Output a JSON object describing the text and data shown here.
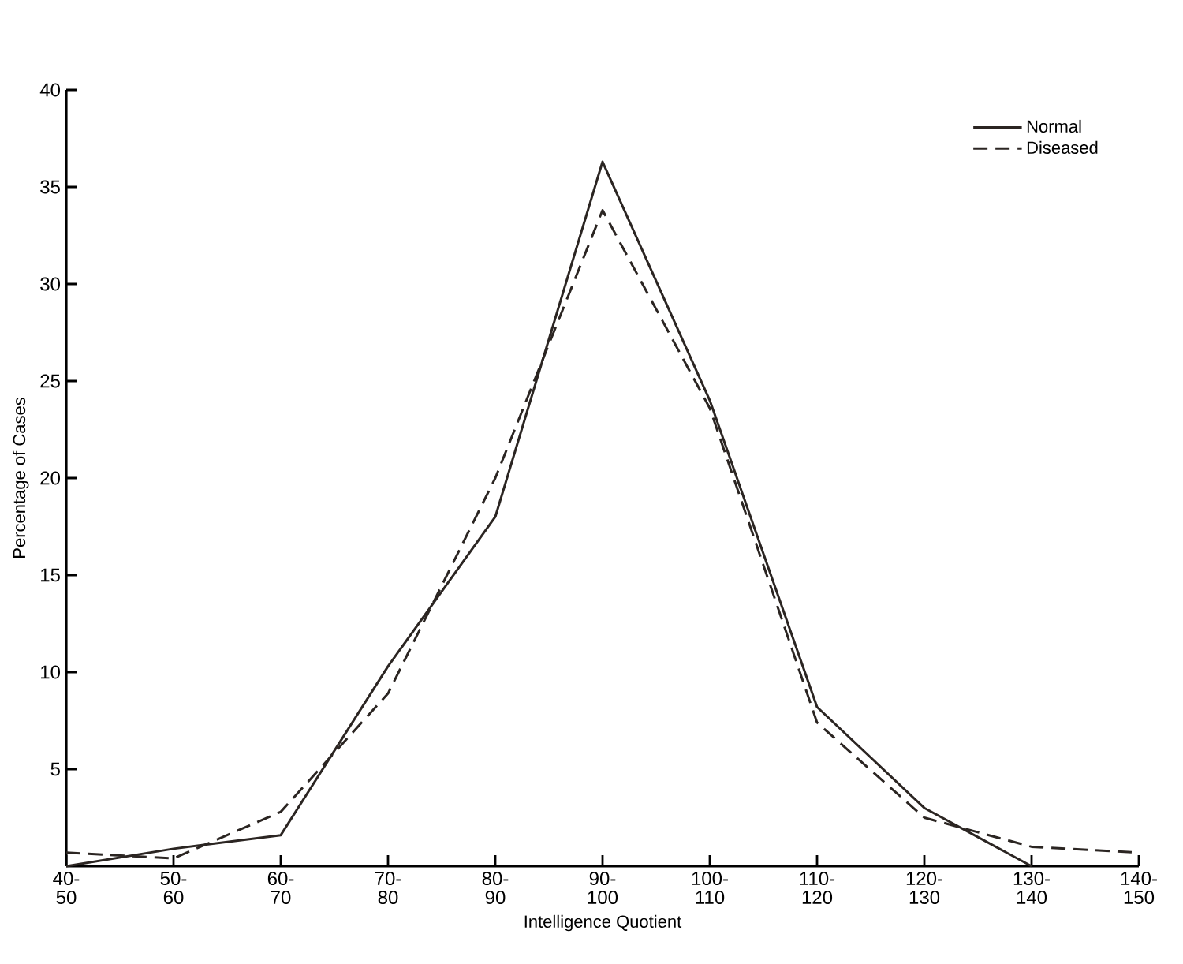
{
  "chart_data": {
    "type": "line",
    "xlabel": "Intelligence Quotient",
    "ylabel": "Percentage of Cases",
    "categories": [
      "40-50",
      "50-60",
      "60-70",
      "70-80",
      "80-90",
      "90-100",
      "100-110",
      "110-120",
      "120-130",
      "130-140",
      "140-150"
    ],
    "series": [
      {
        "name": "Normal",
        "color": "#2b2522",
        "line_style": "solid",
        "values": [
          0,
          0.9,
          1.6,
          10.3,
          18,
          36.3,
          24,
          8.2,
          3,
          0,
          null
        ]
      },
      {
        "name": "Diseased",
        "color": "#2b2522",
        "line_style": "dashed",
        "values": [
          0.7,
          0.4,
          2.8,
          8.9,
          20,
          33.8,
          23.6,
          7.4,
          2.5,
          1,
          0.7
        ]
      }
    ],
    "ylim": [
      0,
      40
    ],
    "yticks": [
      5,
      10,
      15,
      20,
      25,
      30,
      35,
      40
    ],
    "legend": "top right",
    "marker": "none",
    "grid": false
  }
}
